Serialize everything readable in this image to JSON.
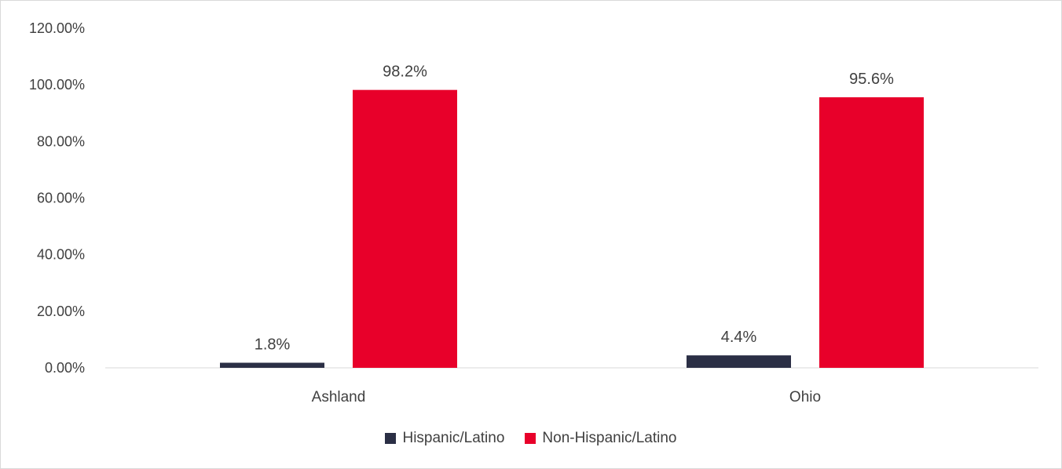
{
  "chart_data": {
    "type": "bar",
    "categories": [
      "Ashland",
      "Ohio"
    ],
    "series": [
      {
        "name": "Hispanic/Latino",
        "values": [
          1.8,
          4.4
        ],
        "labels": [
          "1.8%",
          "4.4%"
        ],
        "color": "#2b2f45"
      },
      {
        "name": "Non-Hispanic/Latino",
        "values": [
          98.2,
          95.6
        ],
        "labels": [
          "98.2%",
          "95.6%"
        ],
        "color": "#e8002a"
      }
    ],
    "yticks": [
      "0.00%",
      "20.00%",
      "40.00%",
      "60.00%",
      "80.00%",
      "100.00%",
      "120.00%"
    ],
    "ylim": [
      0,
      120
    ],
    "grid": false,
    "legend_position": "bottom"
  }
}
